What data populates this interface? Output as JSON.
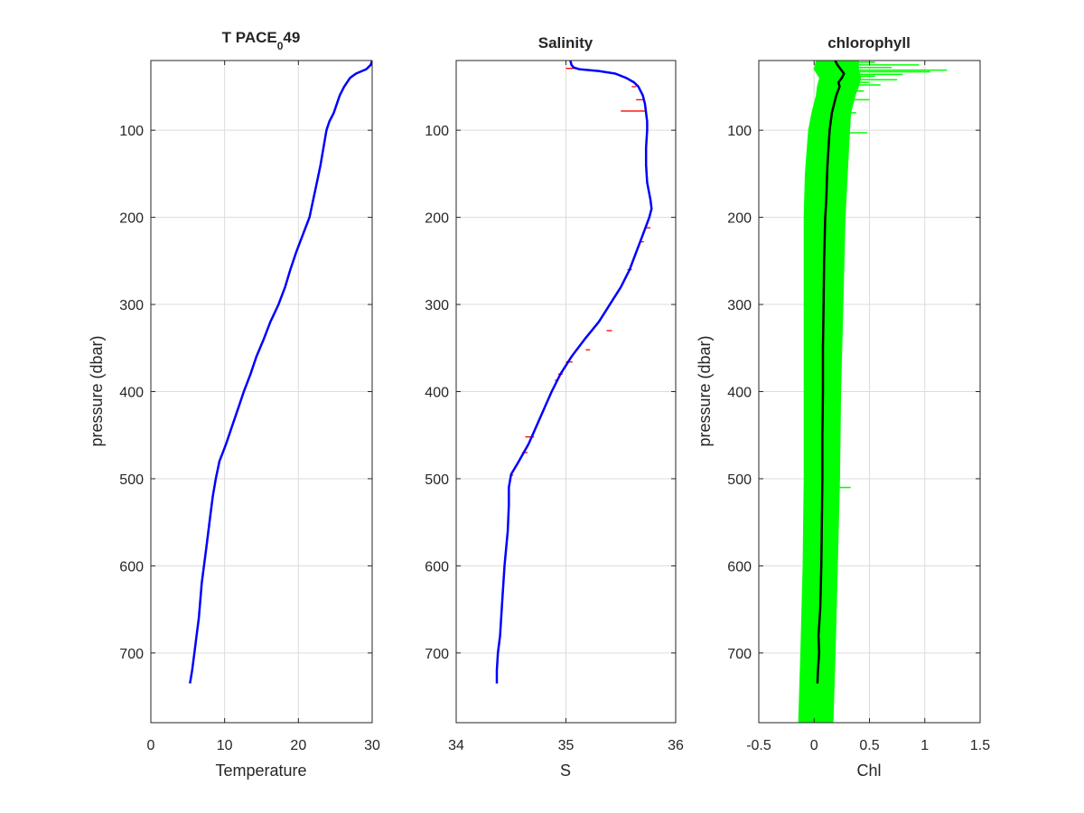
{
  "chart_data": [
    {
      "type": "line",
      "title_main": "T PACE",
      "title_sub": "0",
      "title_tail": "49",
      "xlabel": "Temperature",
      "ylabel": "pressure (dbar)",
      "xlim": [
        0,
        30
      ],
      "ylim": [
        20,
        780
      ],
      "y_reversed": true,
      "grid": true,
      "xticks": [
        "0",
        "10",
        "20",
        "30"
      ],
      "yticks": [
        "100",
        "200",
        "300",
        "400",
        "500",
        "600",
        "700"
      ],
      "series": [
        {
          "color": "#0000ff",
          "y": [
            20,
            25,
            30,
            35,
            40,
            50,
            60,
            70,
            80,
            90,
            100,
            120,
            140,
            160,
            180,
            200,
            220,
            240,
            260,
            280,
            300,
            320,
            340,
            360,
            380,
            400,
            420,
            440,
            460,
            480,
            500,
            520,
            540,
            560,
            580,
            600,
            620,
            640,
            660,
            680,
            700,
            720,
            735
          ],
          "x": [
            30,
            29.8,
            29.2,
            27.8,
            27.0,
            26.2,
            25.6,
            25.2,
            24.8,
            24.2,
            23.8,
            23.4,
            23.0,
            22.5,
            22.0,
            21.5,
            20.6,
            19.7,
            18.9,
            18.2,
            17.3,
            16.2,
            15.3,
            14.3,
            13.5,
            12.6,
            11.8,
            11.0,
            10.2,
            9.3,
            8.8,
            8.4,
            8.1,
            7.8,
            7.5,
            7.2,
            6.9,
            6.7,
            6.5,
            6.2,
            5.9,
            5.6,
            5.3
          ]
        }
      ]
    },
    {
      "type": "line",
      "title": "Salinity",
      "xlabel": "S",
      "xlim": [
        34,
        36
      ],
      "ylim": [
        20,
        780
      ],
      "y_reversed": true,
      "grid": true,
      "xticks": [
        "34",
        "35",
        "36"
      ],
      "yticks": [
        "100",
        "200",
        "300",
        "400",
        "500",
        "600",
        "700"
      ],
      "series": [
        {
          "color": "#0000ff",
          "y": [
            20,
            25,
            28,
            30,
            32,
            35,
            40,
            45,
            50,
            60,
            70,
            80,
            90,
            100,
            120,
            140,
            160,
            180,
            190,
            200,
            210,
            220,
            240,
            260,
            280,
            300,
            320,
            340,
            360,
            380,
            400,
            420,
            440,
            460,
            480,
            495,
            510,
            530,
            560,
            600,
            640,
            680,
            700,
            720,
            735
          ],
          "x": [
            35.04,
            35.05,
            35.07,
            35.12,
            35.3,
            35.45,
            35.55,
            35.62,
            35.66,
            35.7,
            35.72,
            35.73,
            35.74,
            35.74,
            35.73,
            35.73,
            35.74,
            35.77,
            35.78,
            35.76,
            35.73,
            35.7,
            35.64,
            35.58,
            35.5,
            35.4,
            35.3,
            35.17,
            35.05,
            34.95,
            34.87,
            34.8,
            34.73,
            34.66,
            34.57,
            34.5,
            34.48,
            34.48,
            34.47,
            34.44,
            34.42,
            34.4,
            34.38,
            34.37,
            34.37
          ]
        }
      ],
      "error_bars": {
        "color": "#ff0000",
        "y": [
          29,
          50,
          65,
          78,
          212,
          228,
          260,
          330,
          352,
          366,
          380,
          387,
          452,
          470,
          496
        ],
        "x_lo": [
          35.0,
          35.6,
          35.64,
          35.5,
          35.72,
          35.67,
          35.56,
          35.37,
          35.18,
          35.0,
          34.93,
          34.9,
          34.63,
          34.6,
          34.49
        ],
        "x_hi": [
          35.12,
          35.64,
          35.72,
          35.73,
          35.77,
          35.71,
          35.6,
          35.42,
          35.22,
          35.06,
          34.97,
          34.93,
          34.71,
          34.65,
          34.52
        ]
      }
    },
    {
      "type": "line",
      "title": "chlorophyll",
      "xlabel": "Chl",
      "ylabel": "pressure (dbar)",
      "xlim": [
        -0.5,
        1.5
      ],
      "ylim": [
        20,
        780
      ],
      "y_reversed": true,
      "grid": true,
      "xticks": [
        "-0.5",
        "0",
        "0.5",
        "1",
        "1.5"
      ],
      "yticks": [
        "100",
        "200",
        "300",
        "400",
        "500",
        "600",
        "700"
      ],
      "band": {
        "color": "#00ff00",
        "y": [
          20,
          30,
          40,
          50,
          60,
          80,
          100,
          150,
          200,
          300,
          400,
          500,
          600,
          700,
          780
        ],
        "x_lo": [
          0.02,
          0.0,
          0.05,
          0.03,
          0.02,
          -0.02,
          -0.05,
          -0.08,
          -0.09,
          -0.09,
          -0.09,
          -0.09,
          -0.1,
          -0.12,
          -0.14
        ],
        "x_hi": [
          0.4,
          0.4,
          0.42,
          0.4,
          0.37,
          0.33,
          0.32,
          0.3,
          0.28,
          0.26,
          0.24,
          0.23,
          0.21,
          0.19,
          0.17
        ]
      },
      "spikes": {
        "color": "#00ff00",
        "y": [
          22,
          25,
          28,
          31,
          33,
          36,
          38,
          42,
          45,
          48,
          55,
          65,
          80,
          103,
          510
        ],
        "x_hi": [
          0.55,
          0.95,
          0.7,
          1.2,
          1.05,
          0.8,
          0.55,
          0.75,
          0.5,
          0.6,
          0.45,
          0.5,
          0.38,
          0.48,
          0.33
        ]
      },
      "series": [
        {
          "color": "#000000",
          "y": [
            20,
            25,
            30,
            35,
            40,
            45,
            50,
            60,
            70,
            80,
            100,
            120,
            140,
            160,
            180,
            200,
            250,
            300,
            350,
            400,
            450,
            500,
            550,
            600,
            650,
            680,
            700,
            720,
            735
          ],
          "x": [
            0.19,
            0.21,
            0.24,
            0.27,
            0.25,
            0.22,
            0.23,
            0.2,
            0.18,
            0.16,
            0.14,
            0.13,
            0.12,
            0.115,
            0.11,
            0.1,
            0.09,
            0.085,
            0.08,
            0.08,
            0.075,
            0.075,
            0.07,
            0.065,
            0.055,
            0.04,
            0.045,
            0.035,
            0.03
          ]
        }
      ]
    }
  ]
}
